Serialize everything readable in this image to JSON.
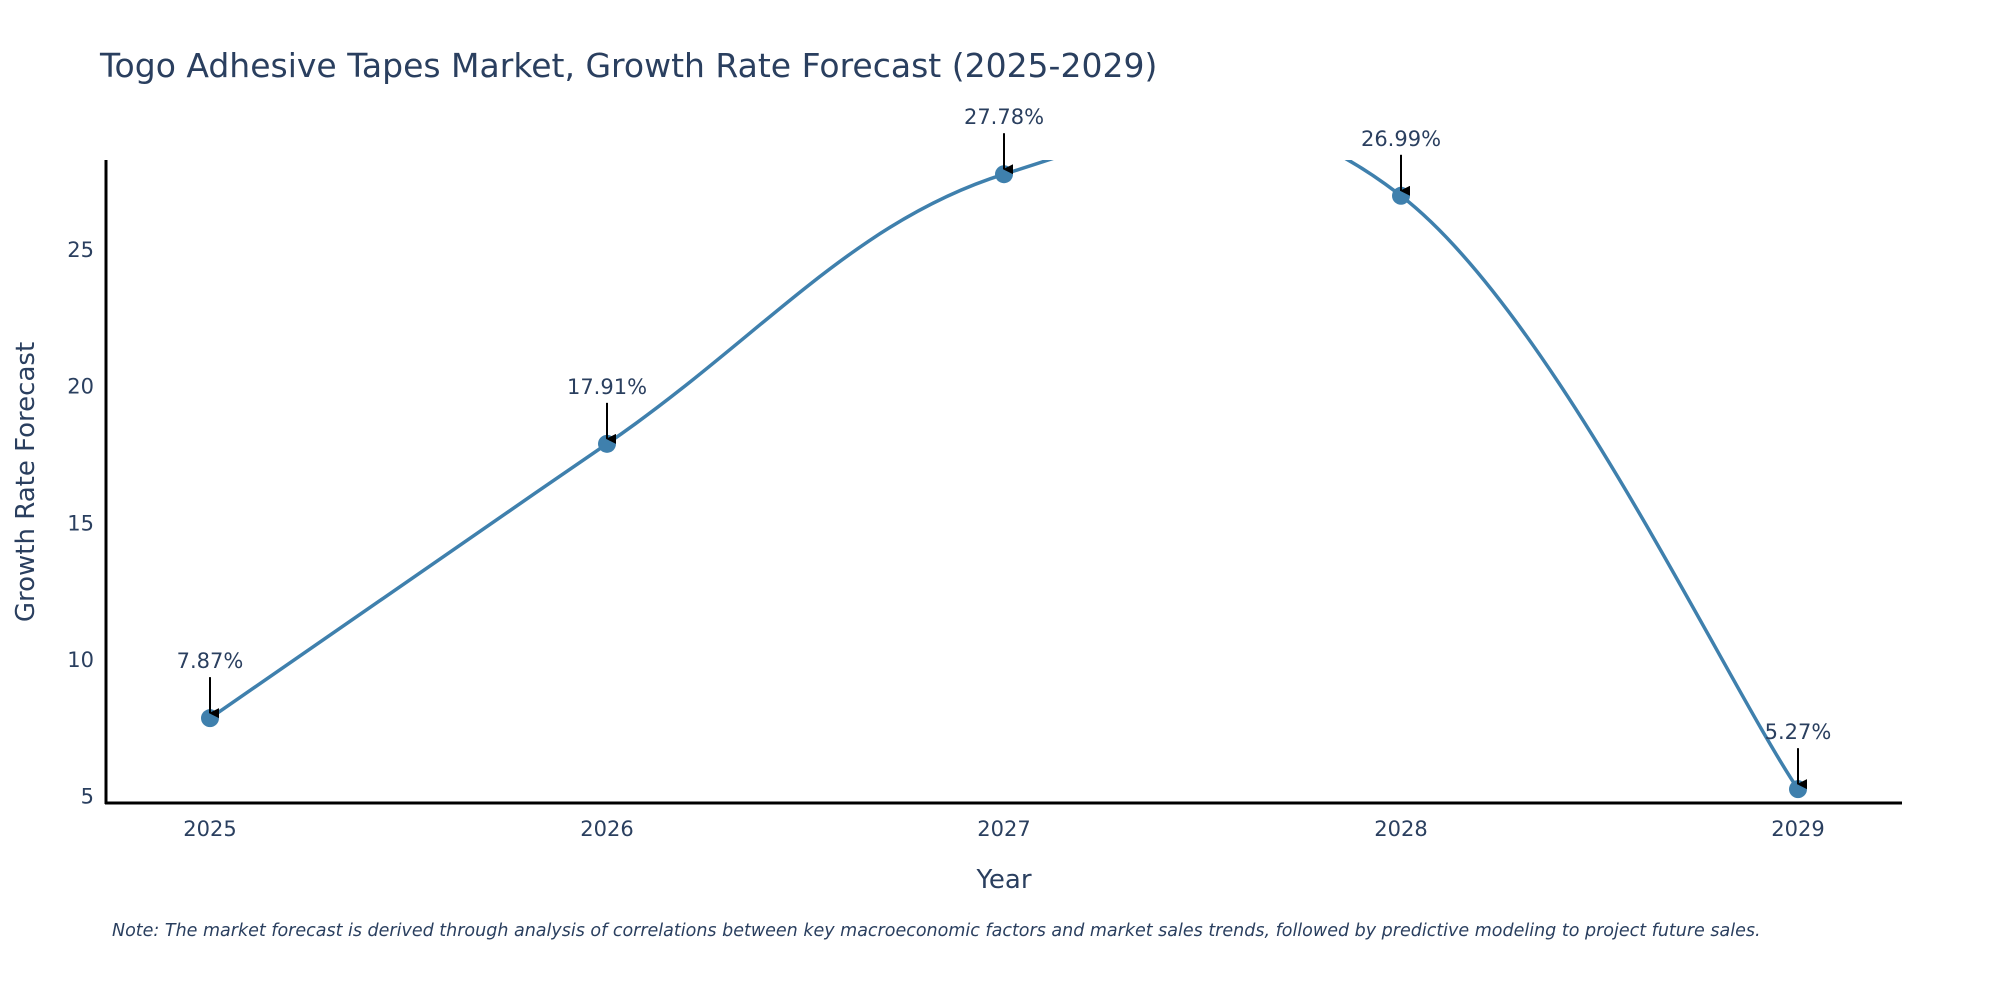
{
  "chart_data": {
    "type": "line",
    "title": "Togo Adhesive Tapes Market, Growth Rate Forecast (2025-2029)",
    "xlabel": "Year",
    "ylabel": "Growth Rate Forecast",
    "x": [
      "2025",
      "2026",
      "2027",
      "2028",
      "2029"
    ],
    "y": [
      7.87,
      17.91,
      27.78,
      26.99,
      5.27
    ],
    "data_labels": [
      "7.87%",
      "17.91%",
      "27.78%",
      "26.99%",
      "5.27%"
    ],
    "ylim": [
      4.8,
      28.3
    ],
    "yticks": [
      "5",
      "10",
      "15",
      "20",
      "25"
    ],
    "yticks_values": [
      5,
      10,
      15,
      20,
      25
    ],
    "line_color": "#3f80ad",
    "marker_color": "#3f80ad",
    "arrow_color": "#000000",
    "grid": false
  },
  "note": "Note: The market forecast is derived through analysis of correlations between key macroeconomic factors and market sales trends, followed by predictive modeling to project future sales."
}
